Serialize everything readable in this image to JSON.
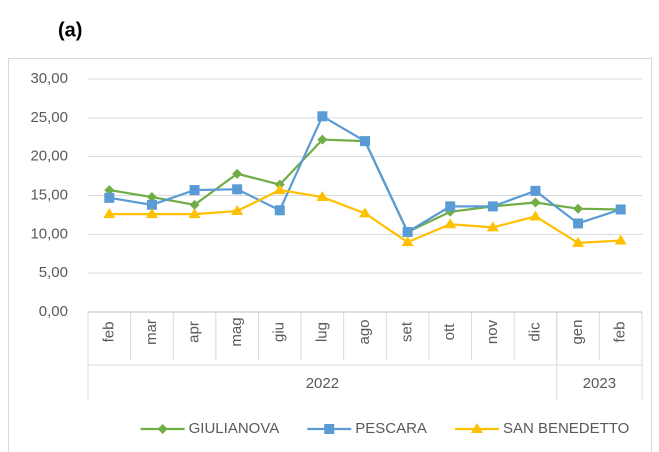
{
  "chart_data": {
    "type": "line",
    "panel_label": "(a)",
    "categories": [
      "feb",
      "mar",
      "apr",
      "mag",
      "giu",
      "lug",
      "ago",
      "set",
      "ott",
      "nov",
      "dic",
      "gen",
      "feb"
    ],
    "groups": [
      {
        "label": "2022",
        "span": 11
      },
      {
        "label": "2023",
        "span": 2
      }
    ],
    "series": [
      {
        "name": "GIULIANOVA",
        "color": "#70ad47",
        "marker": "diamond",
        "values": [
          15.7,
          14.8,
          13.8,
          17.8,
          16.4,
          22.2,
          22.0,
          10.3,
          12.9,
          13.6,
          14.1,
          13.3,
          13.2
        ]
      },
      {
        "name": "PESCARA",
        "color": "#5b9bd5",
        "marker": "square",
        "values": [
          14.7,
          13.8,
          15.7,
          15.8,
          13.1,
          25.2,
          22.0,
          10.3,
          13.6,
          13.6,
          15.6,
          11.4,
          13.2
        ]
      },
      {
        "name": "SAN BENEDETTO",
        "color": "#ffc000",
        "marker": "triangle",
        "values": [
          12.6,
          12.6,
          12.6,
          13.0,
          15.7,
          14.8,
          12.7,
          9.0,
          11.3,
          10.9,
          12.3,
          8.9,
          9.2
        ]
      }
    ],
    "ylim": [
      0,
      30
    ],
    "yticks": [
      {
        "value": 0,
        "label": "0,00"
      },
      {
        "value": 5,
        "label": "5,00"
      },
      {
        "value": 10,
        "label": "10,00"
      },
      {
        "value": 15,
        "label": "15,00"
      },
      {
        "value": 20,
        "label": "20,00"
      },
      {
        "value": 25,
        "label": "25,00"
      },
      {
        "value": 30,
        "label": "30,00"
      }
    ],
    "grid": true,
    "legend": "bottom"
  }
}
